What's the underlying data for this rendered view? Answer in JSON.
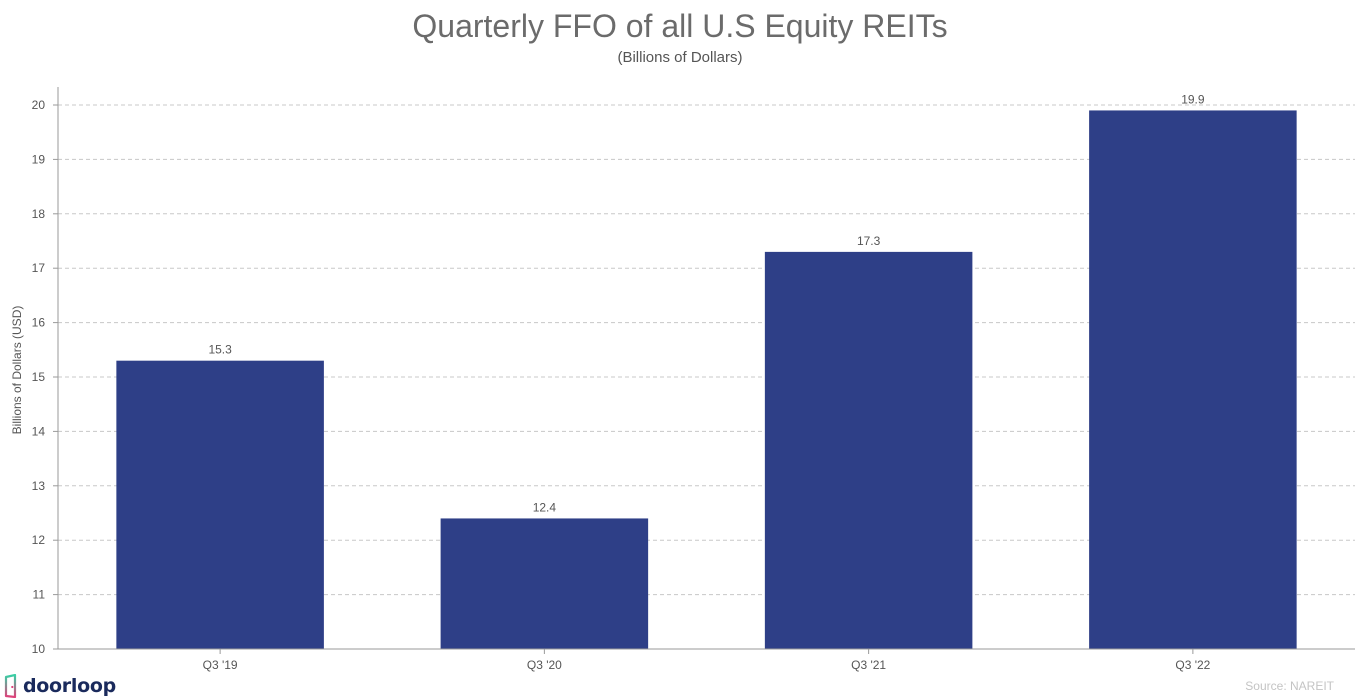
{
  "chart_data": {
    "type": "bar",
    "title": "Quarterly FFO of all U.S Equity REITs",
    "subtitle": "(Billions of Dollars)",
    "xlabel": "",
    "ylabel": "Billions of Dollars (USD)",
    "categories": [
      "Q3 '19",
      "Q3 '20",
      "Q3 '21",
      "Q3 '22"
    ],
    "values": [
      15.3,
      12.4,
      17.3,
      19.9
    ],
    "data_labels": [
      "15.3",
      "12.4",
      "17.3",
      "19.9"
    ],
    "ylim": [
      10,
      20
    ],
    "yticks": [
      10,
      11,
      12,
      13,
      14,
      15,
      16,
      17,
      18,
      19,
      20
    ],
    "grid": "horizontal dashed",
    "bar_color": "#2e3f87"
  },
  "brand": {
    "name": "doorloop"
  },
  "source": "Source: NAREIT"
}
